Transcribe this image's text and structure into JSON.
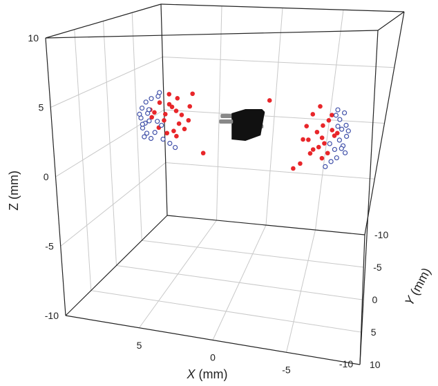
{
  "chart_data": {
    "type": "scatter3d",
    "xlabel": {
      "var": "X",
      "unit": " (mm)"
    },
    "ylabel": {
      "var": "Y",
      "unit": " (mm)"
    },
    "zlabel": "Z (mm)",
    "xlim": [
      -10,
      10
    ],
    "ylim": [
      -10,
      10
    ],
    "zlim": [
      -10,
      10
    ],
    "x_ticks": [
      "5",
      "0",
      "-5"
    ],
    "y_ticks": [
      "-10",
      "-5",
      "0",
      "5",
      "10"
    ],
    "z_ticks": [
      "10",
      "5",
      "0",
      "-5",
      "-10"
    ],
    "extra_x_tick": "-10",
    "grid": true,
    "legend": "none",
    "colors": {
      "filled": "#e8262a",
      "hollow": "#3f4fa8",
      "object": "#111111",
      "pin": "#888888",
      "grid": "#c8c8c8",
      "box": "#222222"
    },
    "center_object": {
      "shape": "black-box-with-pins",
      "center": [
        0,
        0,
        2
      ]
    },
    "series": [
      {
        "marker": "filled-circle",
        "points": [
          [
            6.2,
            0.0,
            3.5
          ],
          [
            5.5,
            0.0,
            3.4
          ],
          [
            6.6,
            0.0,
            2.7
          ],
          [
            5.8,
            0.0,
            2.6
          ],
          [
            5.0,
            0.0,
            2.9
          ],
          [
            3.8,
            0.0,
            4.3
          ],
          [
            4.9,
            0.0,
            3.9
          ],
          [
            5.5,
            0.0,
            4.2
          ],
          [
            4.8,
            0.0,
            1.9
          ],
          [
            5.9,
            0.0,
            2.1
          ],
          [
            6.8,
            0.0,
            2.3
          ],
          [
            4.0,
            0.0,
            3.3
          ],
          [
            6.3,
            0.0,
            1.5
          ],
          [
            5.2,
            0.0,
            1.3
          ],
          [
            4.4,
            0.0,
            1.5
          ],
          [
            5.0,
            0.0,
            0.9
          ],
          [
            5.7,
            0.0,
            1.1
          ],
          [
            4.1,
            0.0,
            2.2
          ],
          [
            4.6,
            0.0,
            2.6
          ],
          [
            6.9,
            0.0,
            2.9
          ],
          [
            3.0,
            0.0,
            -0.3
          ],
          [
            5.3,
            0.0,
            3.2
          ],
          [
            -5.5,
            0.0,
            3.7
          ],
          [
            -5.0,
            0.0,
            3.1
          ],
          [
            -6.2,
            0.0,
            2.7
          ],
          [
            -5.8,
            0.0,
            2.3
          ],
          [
            -4.6,
            0.0,
            2.2
          ],
          [
            -5.4,
            0.0,
            1.8
          ],
          [
            -6.7,
            0.0,
            1.6
          ],
          [
            -4.8,
            0.0,
            1.2
          ],
          [
            -6.0,
            0.0,
            1.0
          ],
          [
            -5.6,
            0.0,
            0.7
          ],
          [
            -6.3,
            0.0,
            0.3
          ],
          [
            -5.0,
            0.0,
            0.2
          ],
          [
            -5.9,
            0.0,
            -0.1
          ],
          [
            -4.3,
            0.0,
            -0.6
          ],
          [
            -6.5,
            0.0,
            2.0
          ],
          [
            -5.2,
            0.0,
            0.5
          ],
          [
            -5.8,
            0.0,
            1.4
          ],
          [
            -6.4,
            0.0,
            3.1
          ],
          [
            -3.8,
            0.0,
            -1.0
          ],
          [
            -1.8,
            0.0,
            4.0
          ],
          [
            -4.4,
            0.0,
            1.2
          ],
          [
            -6.9,
            0.0,
            1.8
          ]
        ]
      },
      {
        "marker": "hollow-circle",
        "points": [
          [
            6.3,
            0.0,
            4.0
          ],
          [
            7.2,
            0.0,
            3.5
          ],
          [
            7.5,
            0.0,
            3.0
          ],
          [
            7.1,
            0.0,
            2.6
          ],
          [
            7.6,
            0.0,
            2.2
          ],
          [
            7.3,
            0.0,
            1.8
          ],
          [
            7.5,
            0.0,
            1.4
          ],
          [
            7.2,
            0.0,
            1.0
          ],
          [
            6.9,
            0.0,
            0.6
          ],
          [
            6.6,
            0.0,
            1.1
          ],
          [
            7.0,
            0.0,
            2.9
          ],
          [
            6.2,
            0.0,
            4.3
          ],
          [
            6.8,
            0.0,
            3.8
          ],
          [
            6.0,
            0.0,
            0.6
          ],
          [
            5.5,
            0.0,
            0.3
          ],
          [
            5.1,
            0.0,
            0.0
          ],
          [
            7.5,
            0.0,
            1.7
          ],
          [
            6.4,
            0.0,
            2.0
          ],
          [
            7.7,
            0.0,
            2.5
          ],
          [
            7.4,
            0.0,
            0.7
          ],
          [
            7.0,
            0.0,
            2.0
          ],
          [
            6.1,
            0.0,
            1.7
          ],
          [
            -6.8,
            0.0,
            3.5
          ],
          [
            -7.3,
            0.0,
            3.3
          ],
          [
            -7.0,
            0.0,
            2.8
          ],
          [
            -7.5,
            0.0,
            2.4
          ],
          [
            -7.2,
            0.0,
            2.1
          ],
          [
            -7.6,
            0.0,
            1.6
          ],
          [
            -7.1,
            0.0,
            1.3
          ],
          [
            -7.4,
            0.0,
            0.9
          ],
          [
            -6.8,
            0.0,
            0.6
          ],
          [
            -7.6,
            0.0,
            0.4
          ],
          [
            -7.0,
            0.0,
            0.0
          ],
          [
            -6.6,
            0.0,
            -0.3
          ],
          [
            -6.2,
            0.0,
            -0.7
          ],
          [
            -6.7,
            0.0,
            3.1
          ],
          [
            -7.7,
            0.0,
            2.0
          ],
          [
            -6.4,
            0.0,
            1.0
          ],
          [
            -7.3,
            0.0,
            0.7
          ],
          [
            -6.9,
            0.0,
            2.3
          ]
        ]
      }
    ]
  }
}
